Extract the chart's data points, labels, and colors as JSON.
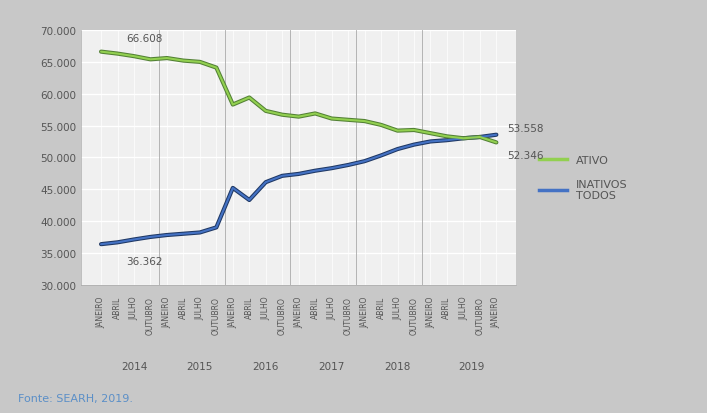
{
  "fonte": "Fonte: SEARH, 2019.",
  "background_color": "#c8c8c8",
  "plot_bg_color": "#f0f0f0",
  "grid_color": "#ffffff",
  "x_labels": [
    "JANEIRO",
    "ABRIL",
    "JULHO",
    "OUTUBRO",
    "JANEIRO",
    "ABRIL",
    "JULHO",
    "OUTUBRO",
    "JANEIRO",
    "ABRIL",
    "JULHO",
    "OUTUBRO",
    "JANEIRO",
    "ABRIL",
    "JULHO",
    "OUTUBRO",
    "JANEIRO",
    "ABRIL",
    "JULHO",
    "OUTUBRO",
    "JANEIRO",
    "ABRIL",
    "JULHO",
    "OUTUBRO",
    "JANEIRO"
  ],
  "year_labels": [
    {
      "year": "2014",
      "index": 2.0
    },
    {
      "year": "2015",
      "index": 6.0
    },
    {
      "year": "2016",
      "index": 10.0
    },
    {
      "year": "2017",
      "index": 14.0
    },
    {
      "year": "2018",
      "index": 18.0
    },
    {
      "year": "2019",
      "index": 22.5
    }
  ],
  "ativo": [
    66608,
    66300,
    65900,
    65400,
    65600,
    65200,
    65000,
    64100,
    58300,
    59400,
    57300,
    56700,
    56400,
    56900,
    56100,
    55900,
    55700,
    55100,
    54200,
    54300,
    53800,
    53300,
    53000,
    53200,
    52346
  ],
  "inativos": [
    36362,
    36650,
    37100,
    37500,
    37800,
    38000,
    38200,
    39000,
    45200,
    43300,
    46100,
    47100,
    47400,
    47900,
    48300,
    48800,
    49400,
    50300,
    51300,
    52000,
    52500,
    52700,
    53000,
    53200,
    53558
  ],
  "ativo_color": "#92d050",
  "ativo_dark": "#538135",
  "inativos_color": "#4472c4",
  "inativos_dark": "#1f3864",
  "ylim": [
    30000,
    70000
  ],
  "yticks": [
    30000,
    35000,
    40000,
    45000,
    50000,
    55000,
    60000,
    65000,
    70000
  ],
  "annotation_ativo_first": "66.608",
  "annotation_inativos_first": "36.362",
  "annotation_ativo_last": "52.346",
  "annotation_inativos_last": "53.558",
  "legend_ativo": "ATIVO",
  "legend_inativos": "INATIVOS\nTODOS"
}
